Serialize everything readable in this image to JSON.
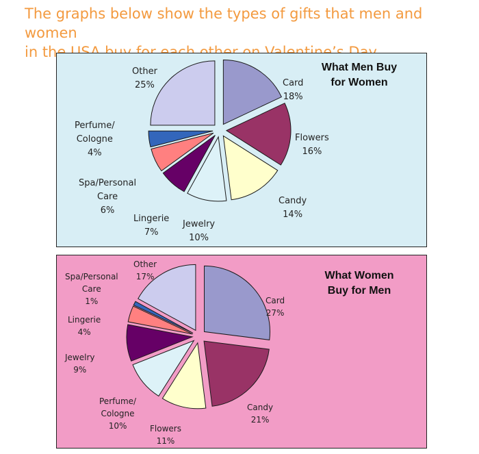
{
  "heading": {
    "line1": "The graphs below show the types of gifts that men and women",
    "line2": "in the USA buy for each other on Valentine’s Day."
  },
  "chart_data": [
    {
      "type": "pie",
      "title_line1": "What Men Buy",
      "title_line2": "for Women",
      "background": "#d8eef5",
      "slices": [
        {
          "label": "Card",
          "value": 18,
          "display": "18%",
          "color": "#9999cc"
        },
        {
          "label": "Flowers",
          "value": 16,
          "display": "16%",
          "color": "#993366"
        },
        {
          "label": "Candy",
          "value": 14,
          "display": "14%",
          "color": "#ffffcc"
        },
        {
          "label": "Jewelry",
          "value": 10,
          "display": "10%",
          "color": "#ddf2f8"
        },
        {
          "label": "Lingerie",
          "value": 7,
          "display": "7%",
          "color": "#660066"
        },
        {
          "label": "Spa/Personal Care",
          "label_lines": [
            "Spa/Personal",
            "Care"
          ],
          "value": 6,
          "display": "6%",
          "color": "#ff8080"
        },
        {
          "label": "Perfume/ Cologne",
          "label_lines": [
            "Perfume/",
            "Cologne"
          ],
          "value": 4,
          "display": "4%",
          "color": "#3366bb"
        },
        {
          "label": "Other",
          "value": 25,
          "display": "25%",
          "color": "#ccccee"
        }
      ]
    },
    {
      "type": "pie",
      "title_line1": "What Women",
      "title_line2": "Buy for Men",
      "background": "#f29cc6",
      "slices": [
        {
          "label": "Card",
          "value": 27,
          "display": "27%",
          "color": "#9999cc"
        },
        {
          "label": "Candy",
          "value": 21,
          "display": "21%",
          "color": "#993366"
        },
        {
          "label": "Flowers",
          "value": 11,
          "display": "11%",
          "color": "#ffffcc"
        },
        {
          "label": "Perfume/ Cologne",
          "label_lines": [
            "Perfume/",
            "Cologne"
          ],
          "value": 10,
          "display": "10%",
          "color": "#ddf2f8"
        },
        {
          "label": "Jewelry",
          "value": 9,
          "display": "9%",
          "color": "#660066"
        },
        {
          "label": "Lingerie",
          "value": 4,
          "display": "4%",
          "color": "#ff8080"
        },
        {
          "label": "Spa/Personal Care",
          "label_lines": [
            "Spa/Personal",
            "Care"
          ],
          "value": 1,
          "display": "1%",
          "color": "#3366bb"
        },
        {
          "label": "Other",
          "value": 17,
          "display": "17%",
          "color": "#ccccee"
        }
      ]
    }
  ]
}
